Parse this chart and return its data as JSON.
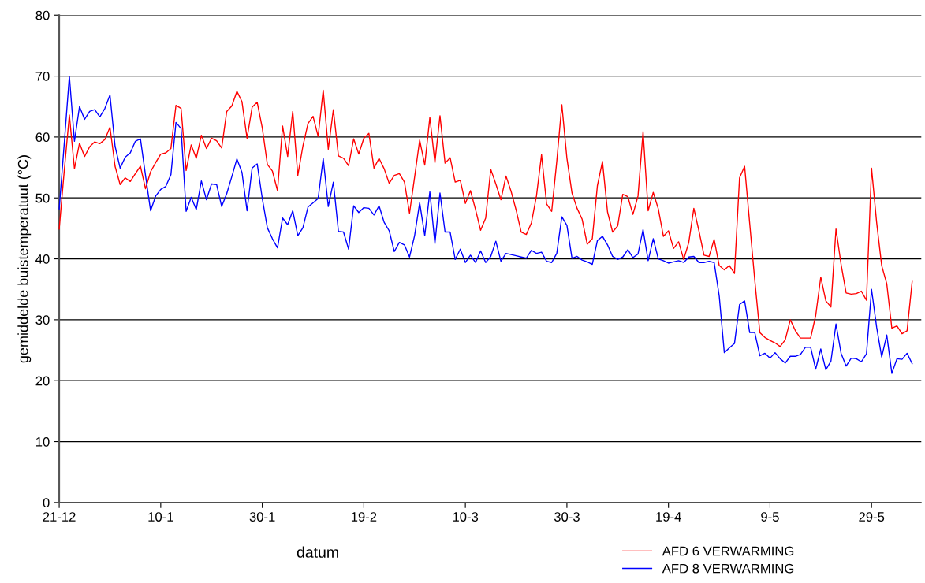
{
  "chart_data": {
    "type": "line",
    "xlabel": "datum",
    "ylabel": "gemiddelde buistemperatuut (°C)",
    "categories": [
      "21-12",
      null,
      null,
      null,
      null,
      null,
      null,
      null,
      null,
      null,
      null,
      null,
      null,
      null,
      null,
      null,
      null,
      null,
      null,
      null,
      "10-1",
      null,
      null,
      null,
      null,
      null,
      null,
      null,
      null,
      null,
      null,
      null,
      null,
      null,
      null,
      null,
      null,
      null,
      null,
      null,
      "30-1",
      null,
      null,
      null,
      null,
      null,
      null,
      null,
      null,
      null,
      null,
      null,
      null,
      null,
      null,
      null,
      null,
      null,
      null,
      null,
      "19-2",
      null,
      null,
      null,
      null,
      null,
      null,
      null,
      null,
      null,
      null,
      null,
      null,
      null,
      null,
      null,
      null,
      null,
      null,
      null,
      "10-3",
      null,
      null,
      null,
      null,
      null,
      null,
      null,
      null,
      null,
      null,
      null,
      null,
      null,
      null,
      null,
      null,
      null,
      null,
      null,
      "30-3",
      null,
      null,
      null,
      null,
      null,
      null,
      null,
      null,
      null,
      null,
      null,
      null,
      null,
      null,
      null,
      null,
      null,
      null,
      null,
      "19-4",
      null,
      null,
      null,
      null,
      null,
      null,
      null,
      null,
      null,
      null,
      null,
      null,
      null,
      null,
      null,
      null,
      null,
      null,
      null,
      "9-5",
      null,
      null,
      null,
      null,
      null,
      null,
      null,
      null,
      null,
      null,
      null,
      null,
      null,
      null,
      null,
      null,
      null,
      null,
      null,
      "29-5",
      null,
      null,
      null,
      null,
      null,
      null,
      null,
      null
    ],
    "series": [
      {
        "name": "AFD 6 VERWARMING",
        "color": "#ff0000",
        "values": [
          44.9,
          54.5,
          63.6,
          54.8,
          59.0,
          56.8,
          58.4,
          59.2,
          58.9,
          59.6,
          61.6,
          55.2,
          52.2,
          53.3,
          52.7,
          54.0,
          55.2,
          51.5,
          54.3,
          55.8,
          57.2,
          57.4,
          58.1,
          65.2,
          64.7,
          54.5,
          58.7,
          56.5,
          60.3,
          58.1,
          59.8,
          59.4,
          58.2,
          64.2,
          65.1,
          67.5,
          65.8,
          59.8,
          64.9,
          65.7,
          61.5,
          55.5,
          54.4,
          51.2,
          61.8,
          56.8,
          64.2,
          53.7,
          58.5,
          62.2,
          63.4,
          60.1,
          67.7,
          58.0,
          64.5,
          56.9,
          56.5,
          55.3,
          59.7,
          57.2,
          59.8,
          60.6,
          54.9,
          56.5,
          54.8,
          52.4,
          53.7,
          54.0,
          52.6,
          47.5,
          53.4,
          59.5,
          55.4,
          63.2,
          55.8,
          63.5,
          55.7,
          56.6,
          52.6,
          52.9,
          49.1,
          51.2,
          48.1,
          44.7,
          46.7,
          54.7,
          52.3,
          49.7,
          53.6,
          51.1,
          48.0,
          44.4,
          44.0,
          45.9,
          50.3,
          57.1,
          49.0,
          47.8,
          56.0,
          65.3,
          56.5,
          50.8,
          48.3,
          46.5,
          42.4,
          43.3,
          52.0,
          56.0,
          47.7,
          44.4,
          45.4,
          50.6,
          50.2,
          47.3,
          50.3,
          60.9,
          47.9,
          50.9,
          48.2,
          43.7,
          44.6,
          41.7,
          42.8,
          39.9,
          42.7,
          48.3,
          44.6,
          40.6,
          40.4,
          43.2,
          38.9,
          38.2,
          38.9,
          37.6,
          53.3,
          55.2,
          45.8,
          36.5,
          27.9,
          27.1,
          26.6,
          26.2,
          25.6,
          26.7,
          30.0,
          28.2,
          27.0,
          27.0,
          27.0,
          30.7,
          37.0,
          33.1,
          32.1,
          44.9,
          39.1,
          34.4,
          34.2,
          34.3,
          34.7,
          33.2,
          54.9,
          46.0,
          38.9,
          35.9,
          28.6,
          29.0,
          27.7,
          28.2,
          36.3
        ]
      },
      {
        "name": "AFD 8 VERWARMING",
        "color": "#0000ff",
        "values": [
          48.2,
          59.0,
          70.0,
          59.3,
          65.0,
          62.9,
          64.2,
          64.5,
          63.3,
          64.7,
          66.9,
          58.5,
          54.9,
          56.7,
          57.4,
          59.3,
          59.7,
          53.7,
          47.9,
          50.3,
          51.4,
          51.9,
          53.8,
          62.4,
          61.4,
          47.8,
          50.1,
          48.1,
          52.8,
          49.7,
          52.3,
          52.2,
          48.6,
          50.7,
          53.5,
          56.4,
          54.2,
          47.9,
          54.9,
          55.6,
          49.9,
          45.1,
          43.3,
          41.8,
          46.7,
          45.6,
          47.9,
          43.8,
          45.1,
          48.5,
          49.2,
          49.9,
          56.5,
          48.6,
          52.6,
          44.5,
          44.4,
          41.6,
          48.7,
          47.6,
          48.4,
          48.3,
          47.2,
          48.7,
          46.0,
          44.6,
          41.2,
          42.7,
          42.3,
          40.3,
          43.8,
          49.2,
          43.8,
          51.0,
          42.5,
          50.8,
          44.4,
          44.4,
          39.9,
          41.6,
          39.4,
          40.6,
          39.4,
          41.3,
          39.4,
          40.4,
          42.9,
          39.6,
          40.9,
          40.7,
          40.5,
          40.3,
          40.1,
          41.4,
          40.9,
          41.1,
          39.6,
          39.4,
          40.9,
          46.9,
          45.5,
          40.1,
          40.4,
          39.8,
          39.5,
          39.1,
          43.0,
          43.7,
          42.3,
          40.4,
          39.9,
          40.3,
          41.5,
          40.2,
          40.8,
          44.8,
          39.7,
          43.3,
          40.0,
          39.7,
          39.3,
          39.5,
          39.7,
          39.4,
          40.3,
          40.4,
          39.4,
          39.4,
          39.6,
          39.4,
          33.9,
          24.6,
          25.4,
          26.1,
          32.5,
          33.1,
          27.9,
          27.9,
          24.1,
          24.5,
          23.7,
          24.6,
          23.6,
          22.9,
          24.0,
          24.0,
          24.3,
          25.5,
          25.5,
          21.9,
          25.2,
          21.8,
          23.2,
          29.3,
          24.5,
          22.4,
          23.7,
          23.6,
          23.1,
          24.4,
          35.0,
          28.8,
          23.9,
          27.5,
          21.2,
          23.6,
          23.5,
          24.5,
          22.8
        ]
      }
    ],
    "ylim": [
      0,
      80
    ],
    "yticks": [
      0,
      10,
      20,
      30,
      40,
      50,
      60,
      70,
      80
    ],
    "grid": "y",
    "legend": "bottom right",
    "marker": "none",
    "line_style": "solid"
  }
}
